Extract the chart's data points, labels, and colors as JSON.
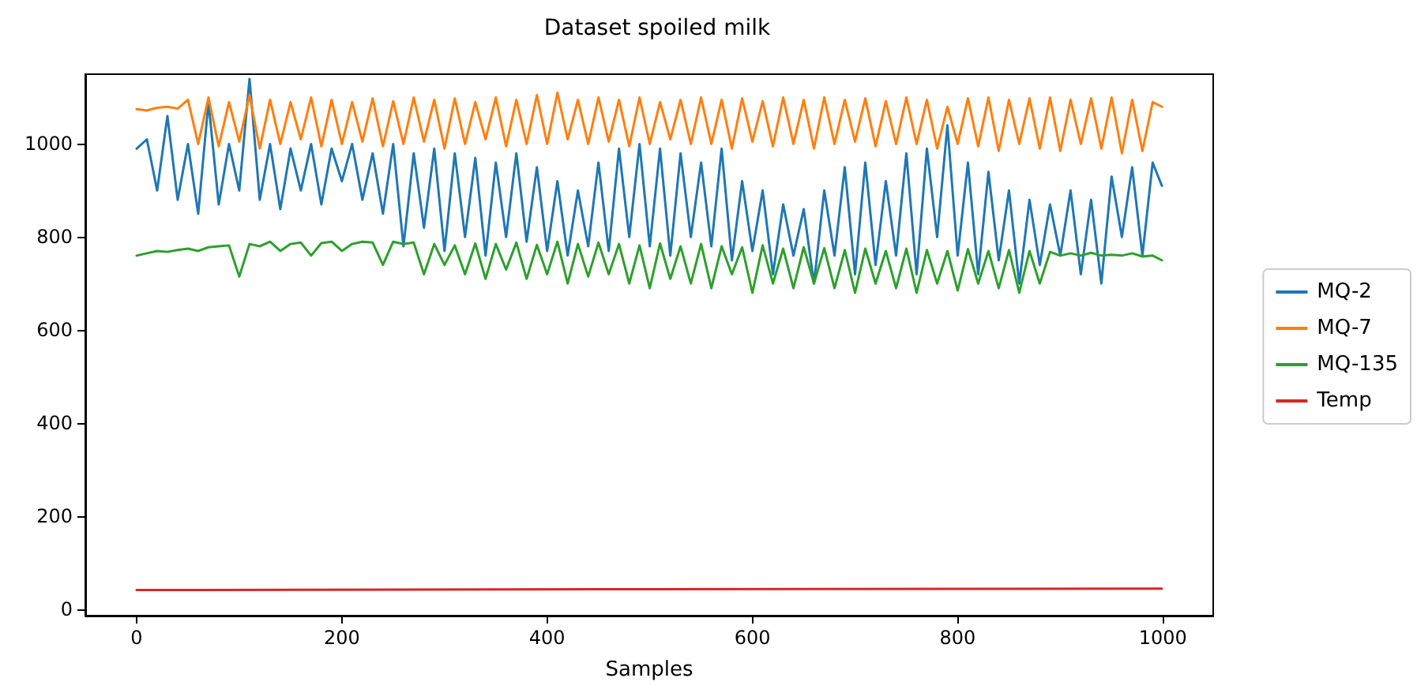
{
  "chart_data": {
    "type": "line",
    "title": "Dataset spoiled milk",
    "xlabel": "Samples",
    "x": [
      0,
      10,
      20,
      30,
      40,
      50,
      60,
      70,
      80,
      90,
      100,
      110,
      120,
      130,
      140,
      150,
      160,
      170,
      180,
      190,
      200,
      210,
      220,
      230,
      240,
      250,
      260,
      270,
      280,
      290,
      300,
      310,
      320,
      330,
      340,
      350,
      360,
      370,
      380,
      390,
      400,
      410,
      420,
      430,
      440,
      450,
      460,
      470,
      480,
      490,
      500,
      510,
      520,
      530,
      540,
      550,
      560,
      570,
      580,
      590,
      600,
      610,
      620,
      630,
      640,
      650,
      660,
      670,
      680,
      690,
      700,
      710,
      720,
      730,
      740,
      750,
      760,
      770,
      780,
      790,
      800,
      810,
      820,
      830,
      840,
      850,
      860,
      870,
      880,
      890,
      900,
      910,
      920,
      930,
      940,
      950,
      960,
      970,
      980,
      990,
      999
    ],
    "series": [
      {
        "name": "MQ-2",
        "color": "#1f77b4",
        "values": [
          990,
          1010,
          900,
          1060,
          880,
          1000,
          850,
          1090,
          870,
          1000,
          900,
          1140,
          880,
          1000,
          860,
          990,
          900,
          1000,
          870,
          990,
          920,
          1000,
          880,
          980,
          850,
          1000,
          780,
          980,
          820,
          990,
          770,
          980,
          800,
          970,
          760,
          960,
          800,
          980,
          790,
          950,
          770,
          920,
          760,
          900,
          780,
          960,
          770,
          990,
          800,
          1000,
          780,
          990,
          760,
          980,
          800,
          960,
          780,
          990,
          750,
          920,
          770,
          900,
          720,
          870,
          760,
          860,
          700,
          900,
          760,
          950,
          720,
          960,
          740,
          920,
          760,
          980,
          720,
          990,
          800,
          1040,
          760,
          960,
          720,
          940,
          750,
          900,
          700,
          880,
          740,
          870,
          760,
          900,
          720,
          880,
          700,
          930,
          800,
          950,
          760,
          960,
          910
        ]
      },
      {
        "name": "MQ-7",
        "color": "#ff7f0e",
        "values": [
          1075,
          1072,
          1078,
          1080,
          1076,
          1095,
          1000,
          1100,
          995,
          1090,
          1005,
          1105,
          990,
          1095,
          1000,
          1090,
          1010,
          1100,
          995,
          1095,
          1000,
          1090,
          1005,
          1098,
          995,
          1092,
          1000,
          1100,
          1005,
          1095,
          990,
          1098,
          1000,
          1090,
          1010,
          1100,
          995,
          1095,
          1000,
          1105,
          1000,
          1110,
          1010,
          1095,
          1000,
          1100,
          1005,
          1095,
          995,
          1100,
          1000,
          1090,
          1010,
          1095,
          1000,
          1100,
          1000,
          1095,
          990,
          1098,
          1005,
          1092,
          995,
          1100,
          1000,
          1095,
          990,
          1100,
          1000,
          1095,
          1005,
          1098,
          995,
          1092,
          1000,
          1100,
          1000,
          1095,
          990,
          1080,
          1000,
          1098,
          995,
          1100,
          985,
          1095,
          1000,
          1098,
          990,
          1100,
          985,
          1095,
          1000,
          1098,
          990,
          1100,
          980,
          1095,
          985,
          1090,
          1080
        ]
      },
      {
        "name": "MQ-135",
        "color": "#2ca02c",
        "values": [
          760,
          765,
          770,
          768,
          772,
          775,
          770,
          778,
          780,
          782,
          715,
          785,
          780,
          790,
          770,
          785,
          788,
          760,
          787,
          790,
          770,
          785,
          790,
          788,
          740,
          790,
          785,
          788,
          720,
          785,
          740,
          782,
          720,
          786,
          710,
          785,
          730,
          788,
          710,
          783,
          720,
          790,
          700,
          785,
          715,
          788,
          720,
          785,
          700,
          782,
          690,
          786,
          710,
          780,
          700,
          785,
          690,
          780,
          720,
          778,
          680,
          782,
          700,
          775,
          690,
          778,
          700,
          776,
          690,
          772,
          680,
          775,
          700,
          770,
          690,
          775,
          680,
          772,
          700,
          770,
          685,
          774,
          700,
          770,
          690,
          772,
          680,
          770,
          700,
          768,
          760,
          765,
          760,
          766,
          760,
          762,
          760,
          765,
          758,
          760,
          750
        ]
      },
      {
        "name": "Temp",
        "color": "#d62728",
        "x": [
          0,
          500,
          999
        ],
        "values": [
          41,
          43,
          44
        ]
      }
    ],
    "xlim": [
      -50,
      1049
    ],
    "xticks": [
      0,
      200,
      400,
      600,
      800,
      1000
    ],
    "ylim": [
      -14,
      1150
    ],
    "yticks": [
      0,
      200,
      400,
      600,
      800,
      1000
    ],
    "grid": false,
    "legend": "right",
    "marker": "none",
    "line_style": "solid"
  }
}
